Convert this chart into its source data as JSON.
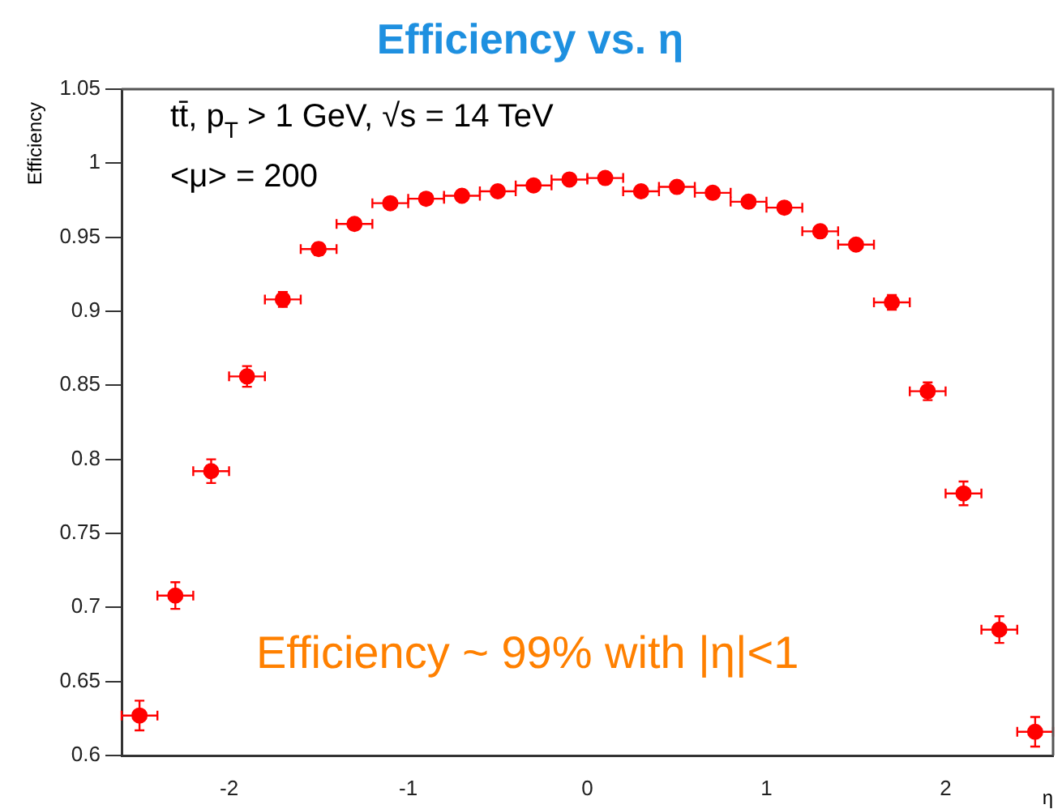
{
  "chart_data": {
    "type": "scatter",
    "title": "Efficiency vs. η",
    "xlabel": "η",
    "ylabel": "Efficiency",
    "x": [
      -2.5,
      -2.3,
      -2.1,
      -1.9,
      -1.7,
      -1.5,
      -1.3,
      -1.1,
      -0.9,
      -0.7,
      -0.5,
      -0.3,
      -0.1,
      0.1,
      0.3,
      0.5,
      0.7,
      0.9,
      1.1,
      1.3,
      1.5,
      1.7,
      1.9,
      2.1,
      2.3,
      2.5
    ],
    "series": [
      {
        "color": "#ff0000",
        "values": [
          0.627,
          0.708,
          0.792,
          0.856,
          0.908,
          0.942,
          0.959,
          0.973,
          0.976,
          0.978,
          0.981,
          0.985,
          0.989,
          0.99,
          0.981,
          0.984,
          0.98,
          0.974,
          0.97,
          0.954,
          0.945,
          0.906,
          0.846,
          0.777,
          0.685,
          0.616
        ],
        "errors": [
          0.01,
          0.009,
          0.008,
          0.007,
          0.005,
          0.004,
          null,
          null,
          null,
          null,
          null,
          null,
          null,
          null,
          null,
          null,
          null,
          null,
          null,
          null,
          null,
          0.005,
          0.006,
          0.008,
          0.009,
          0.01
        ],
        "xerrors": [
          0.1,
          0.1,
          0.1,
          0.1,
          0.1,
          0.1,
          0.1,
          0.1,
          0.1,
          0.1,
          0.1,
          0.1,
          0.1,
          0.1,
          0.1,
          0.1,
          0.1,
          0.1,
          0.1,
          0.1,
          0.1,
          0.1,
          0.1,
          0.1,
          0.1,
          0.1
        ]
      }
    ],
    "xlim": [
      -2.6,
      2.6
    ],
    "xticks": [
      -2,
      -1,
      0,
      1,
      2
    ],
    "ylim": [
      0.6,
      1.05
    ],
    "yticks": [
      0.6,
      0.65,
      0.7,
      0.75,
      0.8,
      0.85,
      0.9,
      0.95,
      1,
      1.05
    ],
    "annotations": [
      "tt̄, p$_{T}$ > 1 GeV, √s = 14 TeV",
      "<μ> = 200",
      "Efficiency ~ 99% with |η|<1"
    ],
    "marker": "circle",
    "grid": false,
    "legend": false
  }
}
